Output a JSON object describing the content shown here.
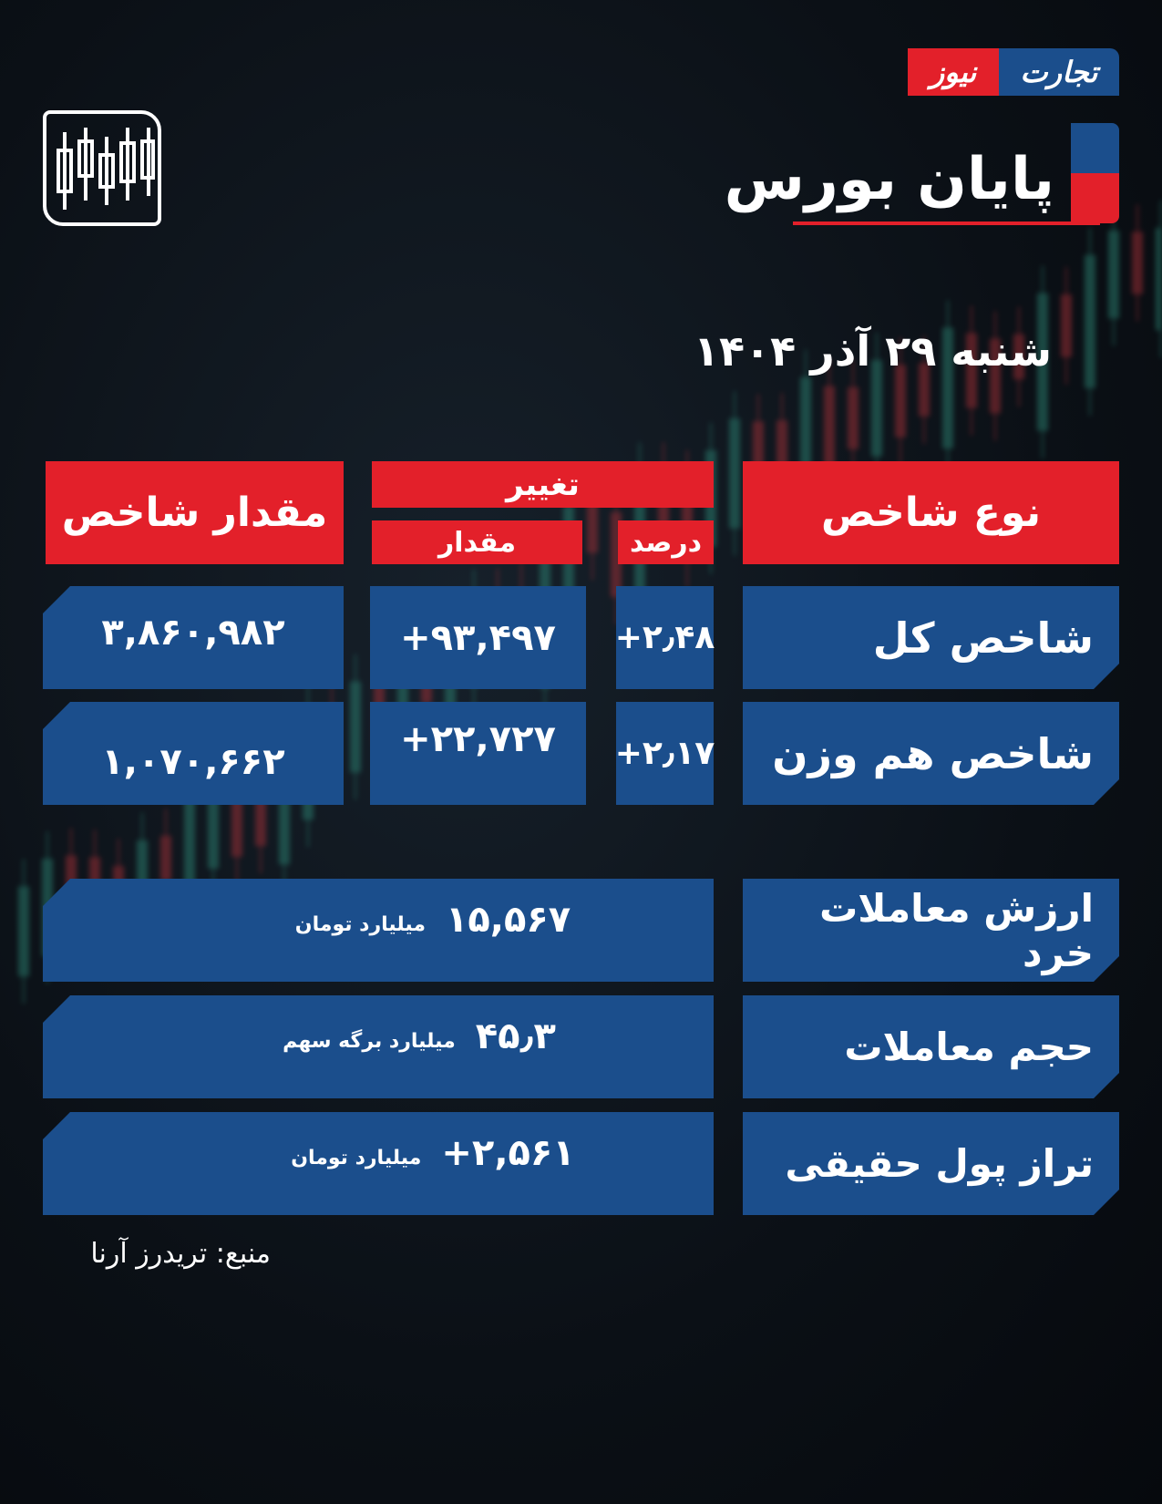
{
  "brand": {
    "logo_blue": "تجارت",
    "logo_red": "نیوز"
  },
  "header": {
    "title": "پایان بورس",
    "date": "شنبه ۲۹ آذر ۱۴۰۴"
  },
  "colors": {
    "blue": "#1b4e8c",
    "red": "#e3202a",
    "background": "#0b1016"
  },
  "icons": {
    "corner": "candlestick-chart-icon"
  },
  "table": {
    "headers": {
      "type": "نوع شاخص",
      "change": "تغییر",
      "percent": "درصد",
      "amount": "مقدار",
      "value": "مقدار شاخص"
    },
    "rows": [
      {
        "name": "شاخص کل",
        "percent": "+۲٫۴۸",
        "change": "+۹۳,۴۹۷",
        "value": "۳,۸۶۰,۹۸۲"
      },
      {
        "name": "شاخص هم وزن",
        "percent": "+۲٫۱۷",
        "change": "+۲۲,۷۲۷",
        "value": "۱,۰۷۰,۶۶۲"
      }
    ]
  },
  "stats": [
    {
      "label": "ارزش معاملات خرد",
      "value": "۱۵,۵۶۷",
      "unit": "میلیارد تومان"
    },
    {
      "label": "حجم معاملات",
      "value": "۴۵٫۳",
      "unit": "میلیارد برگه سهم"
    },
    {
      "label": "تراز پول حقیقی",
      "value": "+۲,۵۶۱",
      "unit": "میلیارد تومان"
    }
  ],
  "source": "منبع: تریدرز آرنا"
}
